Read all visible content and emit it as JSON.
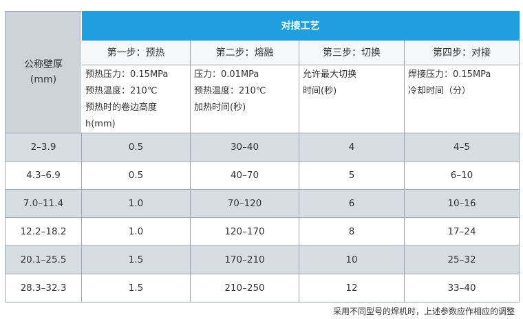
{
  "header": {
    "thickness_label_line1": "公称壁厚",
    "thickness_label_line2": "(mm)",
    "group_title": "对接工艺",
    "steps": [
      "第一步：预热",
      "第二步：熔融",
      "第三步：切换",
      "第四步：对接"
    ]
  },
  "details": [
    [
      "预热压力：0.15MPa",
      "预热温度：210℃",
      "预热时的卷边高度",
      "h(mm)"
    ],
    [
      "压力：0.01MPa",
      "预热温度：210℃",
      "加热时间(秒)"
    ],
    [
      "允许最大切换",
      "时间(秒)"
    ],
    [
      "焊接压力：0.15MPa",
      "冷却时间（分）"
    ]
  ],
  "rows": [
    {
      "thickness": "2–3.9",
      "preheat": "0.5",
      "melt": "30–40",
      "switch": "4",
      "joint": "4–5"
    },
    {
      "thickness": "4.3–6.9",
      "preheat": "0.5",
      "melt": "40–70",
      "switch": "5",
      "joint": "6–10"
    },
    {
      "thickness": "7.0–11.4",
      "preheat": "1.0",
      "melt": "70–120",
      "switch": "6",
      "joint": "10–16"
    },
    {
      "thickness": "12.2–18.2",
      "preheat": "1.0",
      "melt": "120–170",
      "switch": "8",
      "joint": "17–24"
    },
    {
      "thickness": "20.1–25.5",
      "preheat": "1.5",
      "melt": "170–210",
      "switch": "10",
      "joint": "25–32"
    },
    {
      "thickness": "28.3–32.3",
      "preheat": "1.5",
      "melt": "210–250",
      "switch": "12",
      "joint": "33–40"
    }
  ],
  "footnote": "采用不同型号的焊机时，上述参数应作相应的调整",
  "colors": {
    "header_blue": "#1f9fe0",
    "corner_gray": "#ccd3d9",
    "alt_row": "#d6dde3"
  }
}
